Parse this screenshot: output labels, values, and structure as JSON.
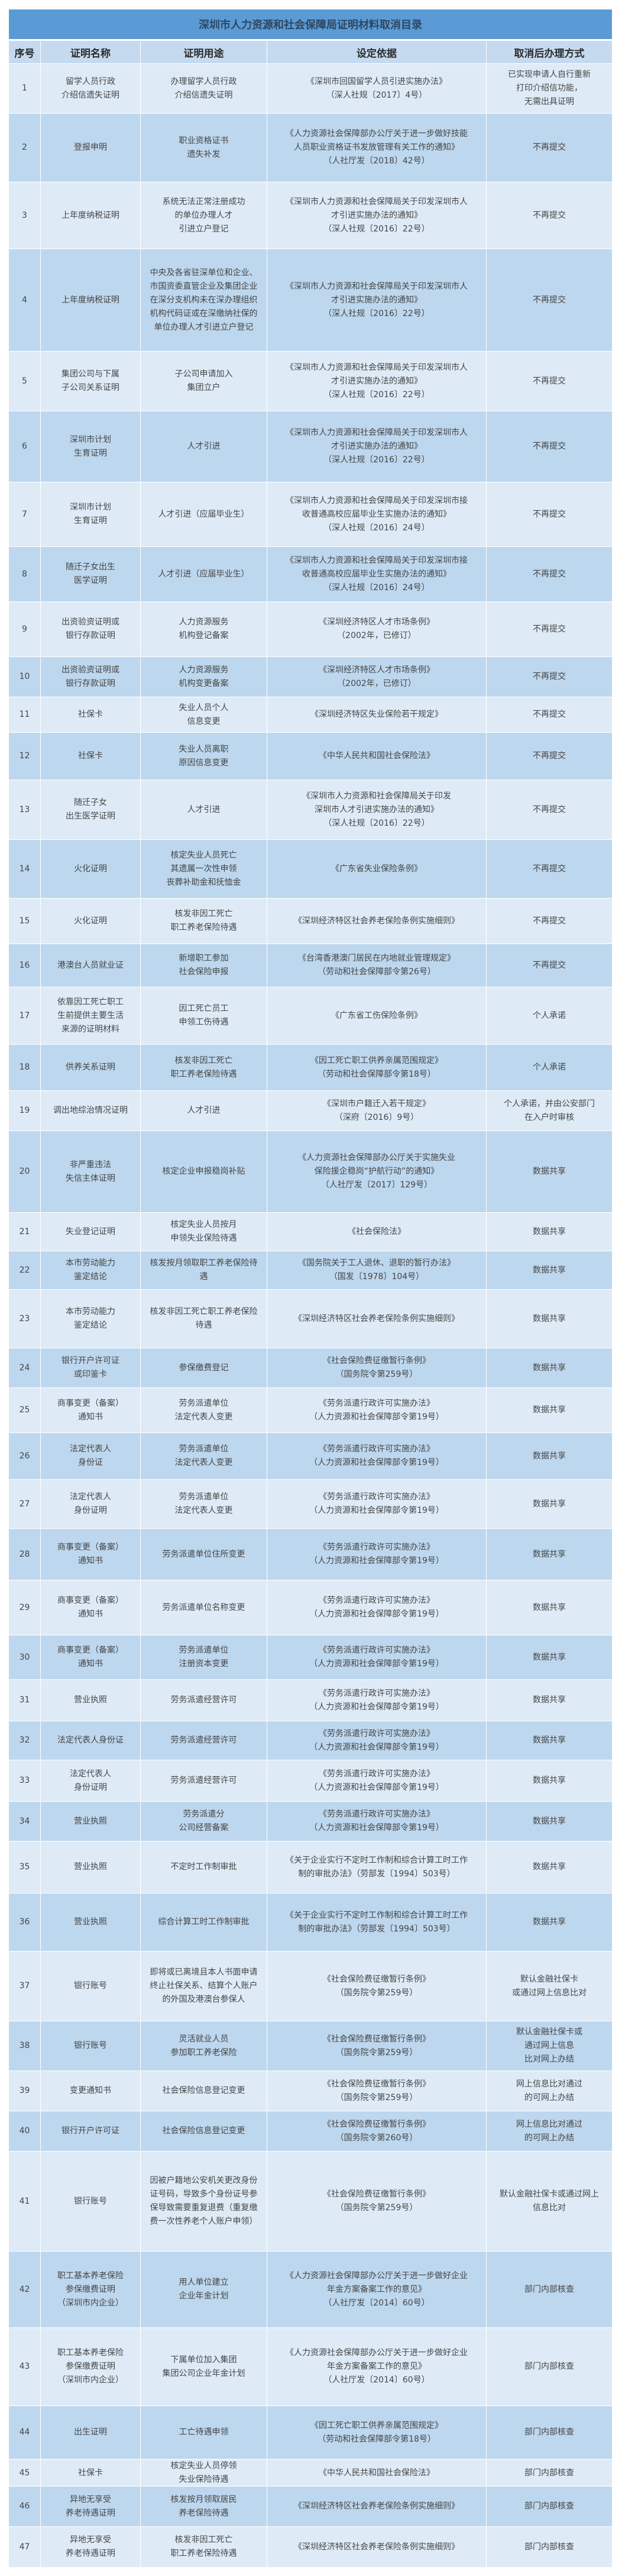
{
  "title": "深圳市人力资源和社会保障局证明材料取消目录",
  "columns": [
    "序号",
    "证明名称",
    "证明用途",
    "设定依据",
    "取消后办理方式"
  ],
  "colors": {
    "title_bar": "#5b9bd5",
    "header": "#c6daef",
    "row_light": "#deebf7",
    "row_dark": "#bdd7ee"
  },
  "rows": [
    {
      "no": "1",
      "name": "留学人员行政\n介绍信遗失证明",
      "use": "办理留学人员行政\n介绍信遗失证明",
      "basis": "《深圳市回国留学人员引进实施办法》\n（深人社规〔2017〕4号）",
      "method": "已实现申请人自行重新\n打印介绍信功能，\n无需出具证明"
    },
    {
      "no": "2",
      "name": "登报申明",
      "use": "职业资格证书\n遗失补发",
      "basis": "《人力资源社会保障部办公厅关于进一步做好技能\n人员职业资格证书发放管理有关工作的通知》\n（人社厅发〔2018〕42号）",
      "method": "不再提交"
    },
    {
      "no": "3",
      "name": "上年度纳税证明",
      "use": "系统无法正常注册成功\n的单位办理人才\n引进立户登记",
      "basis": "《深圳市人力资源和社会保障局关于印发深圳市人\n才引进实施办法的通知》\n（深人社规〔2016〕22号）",
      "method": "不再提交"
    },
    {
      "no": "4",
      "name": "上年度纳税证明",
      "use": "中央及各省驻深单位和企业、\n市国资委直管企业及集团企业\n在深分支机构未在深办理组织\n机构代码证或在深缴纳社保的\n单位办理人才引进立户登记",
      "basis": "《深圳市人力资源和社会保障局关于印发深圳市人\n才引进实施办法的通知》\n（深人社规〔2016〕22号）",
      "method": "不再提交"
    },
    {
      "no": "5",
      "name": "集团公司与下属\n子公司关系证明",
      "use": "子公司申请加入\n集团立户",
      "basis": "《深圳市人力资源和社会保障局关于印发深圳市人\n才引进实施办法的通知》\n（深人社规〔2016〕22号）",
      "method": "不再提交"
    },
    {
      "no": "6",
      "name": "深圳市计划\n生育证明",
      "use": "人才引进",
      "basis": "《深圳市人力资源和社会保障局关于印发深圳市人\n才引进实施办法的通知》\n（深人社规〔2016〕22号）",
      "method": "不再提交"
    },
    {
      "no": "7",
      "name": "深圳市计划\n生育证明",
      "use": "人才引进（应届毕业生）",
      "basis": "《深圳市人力资源和社会保障局关于印发深圳市接\n收普通高校应届毕业生实施办法的通知》\n（深人社规〔2016〕24号）",
      "method": "不再提交"
    },
    {
      "no": "8",
      "name": "随迁子女出生\n医学证明",
      "use": "人才引进（应届毕业生）",
      "basis": "《深圳市人力资源和社会保障局关于印发深圳市接\n收普通高校应届毕业生实施办法的通知》\n（深人社规〔2016〕24号）",
      "method": "不再提交"
    },
    {
      "no": "9",
      "name": "出资验资证明或\n银行存款证明",
      "use": "人力资源服务\n机构登记备案",
      "basis": "《深圳经济特区人才市场条例》\n（2002年，已修订）",
      "method": "不再提交"
    },
    {
      "no": "10",
      "name": "出资验资证明或\n银行存款证明",
      "use": "人力资源服务\n机构变更备案",
      "basis": "《深圳经济特区人才市场条例》\n（2002年，已修订）",
      "method": "不再提交"
    },
    {
      "no": "11",
      "name": "社保卡",
      "use": "失业人员个人\n信息变更",
      "basis": "《深圳经济特区失业保险若干规定》",
      "method": "不再提交"
    },
    {
      "no": "12",
      "name": "社保卡",
      "use": "失业人员离职\n原因信息变更",
      "basis": "《中华人民共和国社会保险法》",
      "method": "不再提交"
    },
    {
      "no": "13",
      "name": "随迁子女\n出生医学证明",
      "use": "人才引进",
      "basis": "《深圳市人力资源和社会保障局关于印发\n深圳市人才引进实施办法的通知》\n（深人社规〔2016〕22号）",
      "method": "不再提交"
    },
    {
      "no": "14",
      "name": "火化证明",
      "use": "核定失业人员死亡\n其遗属一次性申领\n丧葬补助金和抚恤金",
      "basis": "《广东省失业保险条例》",
      "method": "不再提交"
    },
    {
      "no": "15",
      "name": "火化证明",
      "use": "核发非因工死亡\n职工养老保险待遇",
      "basis": "《深圳经济特区社会养老保险条例实施细则》",
      "method": "不再提交"
    },
    {
      "no": "16",
      "name": "港澳台人员就业证",
      "use": "新增职工参加\n社会保险申报",
      "basis": "《台湾香港澳门居民在内地就业管理规定》\n（劳动和社会保障部令第26号）",
      "method": "不再提交"
    },
    {
      "no": "17",
      "name": "依靠因工死亡职工\n生前提供主要生活\n来源的证明材料",
      "use": "因工死亡员工\n申领工伤待遇",
      "basis": "《广东省工伤保险条例》",
      "method": "个人承诺"
    },
    {
      "no": "18",
      "name": "供养关系证明",
      "use": "核发非因工死亡\n职工养老保险待遇",
      "basis": "《因工死亡职工供养亲属范围规定》\n（劳动和社会保障部令第18号）",
      "method": "个人承诺"
    },
    {
      "no": "19",
      "name": "调出地综治情况证明",
      "use": "人才引进",
      "basis": "《深圳市户籍迁入若干规定》\n（深府〔2016〕9号）",
      "method": "个人承诺，并由公安部门\n在入户时审核"
    },
    {
      "no": "20",
      "name": "非严重违法\n失信主体证明",
      "use": "核定企业申报稳岗补贴",
      "basis": "《人力资源社会保障部办公厅关于实施失业\n保险援企稳岗“护航行动”的通知》\n（人社厅发〔2017〕129号）",
      "method": "数据共享"
    },
    {
      "no": "21",
      "name": "失业登记证明",
      "use": "核定失业人员按月\n申领失业保险待遇",
      "basis": "《社会保险法》",
      "method": "数据共享"
    },
    {
      "no": "22",
      "name": "本市劳动能力\n鉴定结论",
      "use": "核发按月领取职工养老保险待\n遇",
      "basis": "《国务院关于工人退休、退职的暂行办法》\n（国发〔1978〕104号）",
      "method": "数据共享"
    },
    {
      "no": "23",
      "name": "本市劳动能力\n鉴定结论",
      "use": "核发非因工死亡职工养老保险\n待遇",
      "basis": "《深圳经济特区社会养老保险条例实施细则》",
      "method": "数据共享"
    },
    {
      "no": "24",
      "name": "银行开户许可证\n或印鉴卡",
      "use": "参保缴费登记",
      "basis": "《社会保险费征缴暂行条例》\n（国务院令第259号）",
      "method": "数据共享"
    },
    {
      "no": "25",
      "name": "商事变更（备案）\n通知书",
      "use": "劳务派遣单位\n法定代表人变更",
      "basis": "《劳务派遣行政许可实施办法》\n（人力资源和社会保障部令第19号）",
      "method": "数据共享"
    },
    {
      "no": "26",
      "name": "法定代表人\n身份证",
      "use": "劳务派遣单位\n法定代表人变更",
      "basis": "《劳务派遣行政许可实施办法》\n（人力资源和社会保障部令第19号）",
      "method": "数据共享"
    },
    {
      "no": "27",
      "name": "法定代表人\n身份证明",
      "use": "劳务派遣单位\n法定代表人变更",
      "basis": "《劳务派遣行政许可实施办法》\n（人力资源和社会保障部令第19号）",
      "method": "数据共享"
    },
    {
      "no": "28",
      "name": "商事变更（备案）\n通知书",
      "use": "劳务派遣单位住所变更",
      "basis": "《劳务派遣行政许可实施办法》\n（人力资源和社会保障部令第19号）",
      "method": "数据共享"
    },
    {
      "no": "29",
      "name": "商事变更（备案）\n通知书",
      "use": "劳务派遣单位名称变更",
      "basis": "《劳务派遣行政许可实施办法》\n（人力资源和社会保障部令第19号）",
      "method": "数据共享"
    },
    {
      "no": "30",
      "name": "商事变更（备案）\n通知书",
      "use": "劳务派遣单位\n注册资本变更",
      "basis": "《劳务派遣行政许可实施办法》\n（人力资源和社会保障部令第19号）",
      "method": "数据共享"
    },
    {
      "no": "31",
      "name": "营业执照",
      "use": "劳务派遣经营许可",
      "basis": "《劳务派遣行政许可实施办法》\n（人力资源和社会保障部令第19号）",
      "method": "数据共享"
    },
    {
      "no": "32",
      "name": "法定代表人身份证",
      "use": "劳务派遣经营许可",
      "basis": "《劳务派遣行政许可实施办法》\n（人力资源和社会保障部令第19号）",
      "method": "数据共享"
    },
    {
      "no": "33",
      "name": "法定代表人\n身份证明",
      "use": "劳务派遣经营许可",
      "basis": "《劳务派遣行政许可实施办法》\n（人力资源和社会保障部令第19号）",
      "method": "数据共享"
    },
    {
      "no": "34",
      "name": "营业执照",
      "use": "劳务派遣分\n公司经营备案",
      "basis": "《劳务派遣行政许可实施办法》\n（人力资源和社会保障部令第19号）",
      "method": "数据共享"
    },
    {
      "no": "35",
      "name": "营业执照",
      "use": "不定时工作制审批",
      "basis": "《关于企业实行不定时工作制和综合计算工时工作\n制的审批办法》（劳部发〔1994〕503号）",
      "method": "数据共享"
    },
    {
      "no": "36",
      "name": "营业执照",
      "use": "综合计算工时工作制审批",
      "basis": "《关于企业实行不定时工作制和综合计算工时工作\n制的审批办法》（劳部发〔1994〕503号）",
      "method": "数据共享"
    },
    {
      "no": "37",
      "name": "银行账号",
      "use": "即将或已离境且本人书面申请\n终止社保关系、结算个人账户\n的外国及港澳台参保人",
      "basis": "《社会保险费征缴暂行条例》\n（国务院令第259号）",
      "method": "默认金融社保卡\n或通过网上信息比对"
    },
    {
      "no": "38",
      "name": "银行账号",
      "use": "灵活就业人员\n参加职工养老保险",
      "basis": "《社会保险费征缴暂行条例》\n（国务院令第259号）",
      "method": "默认金融社保卡或\n通过网上信息\n比对网上办结"
    },
    {
      "no": "39",
      "name": "变更通知书",
      "use": "社会保险信息登记变更",
      "basis": "《社会保险费征缴暂行条例》\n（国务院令第259号）",
      "method": "网上信息比对通过\n的可网上办结"
    },
    {
      "no": "40",
      "name": "银行开户许可证",
      "use": "社会保险信息登记变更",
      "basis": "《社会保险费征缴暂行条例》\n（国务院令第260号）",
      "method": "网上信息比对通过\n的可网上办结"
    },
    {
      "no": "41",
      "name": "银行账号",
      "use": "因被户籍地公安机关更改身份\n证号码，导致多个身份证号参\n保导致需要重复退费（重复缴\n费一次性养老个人账户申领）",
      "basis": "《社会保险费征缴暂行条例》\n（国务院令第259号）",
      "method": "默认金融社保卡或通过网上\n信息比对"
    },
    {
      "no": "42",
      "name": "职工基本养老保险\n参保缴费证明\n（深圳市内企业）",
      "use": "用人单位建立\n企业年金计划",
      "basis": "《人力资源社会保障部办公厅关于进一步做好企业\n年金方案备案工作的意见》\n（人社厅发〔2014〕60号）",
      "method": "部门内部核查"
    },
    {
      "no": "43",
      "name": "职工基本养老保险\n参保缴费证明\n（深圳市内企业）",
      "use": "下属单位加入集团\n集团公司企业年金计划",
      "basis": "《人力资源社会保障部办公厅关于进一步做好企业\n年金方案备案工作的意见》\n（人社厅发〔2014〕60号）",
      "method": "部门内部核查"
    },
    {
      "no": "44",
      "name": "出生证明",
      "use": "工亡待遇申领",
      "basis": "《因工死亡职工供养亲属范围规定》\n（劳动和社会保障部令第18号）",
      "method": "部门内部核查"
    },
    {
      "no": "45",
      "name": "社保卡",
      "use": "核定失业人员停领\n失业保险待遇",
      "basis": "《中华人民共和国社会保险法》",
      "method": "部门内部核查"
    },
    {
      "no": "46",
      "name": "异地无享受\n养老待遇证明",
      "use": "核发按月领取居民\n养老保险待遇",
      "basis": "《深圳经济特区社会养老保险条例实施细则》",
      "method": "部门内部核查"
    },
    {
      "no": "47",
      "name": "异地无享受\n养老待遇证明",
      "use": "核发非因工死亡\n职工养老保险待遇",
      "basis": "《深圳经济特区社会养老保险条例实施细则》",
      "method": "部门内部核查"
    }
  ]
}
